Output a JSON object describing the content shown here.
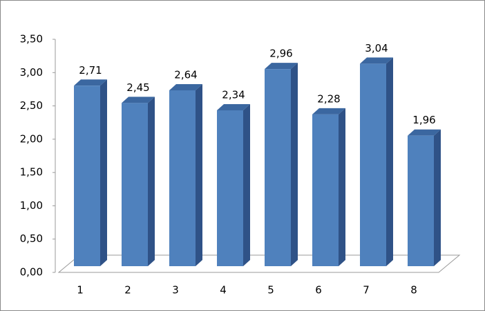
{
  "chart_data": {
    "type": "bar3d",
    "categories": [
      "1",
      "2",
      "3",
      "4",
      "5",
      "6",
      "7",
      "8"
    ],
    "values": [
      2.71,
      2.45,
      2.64,
      2.34,
      2.96,
      2.28,
      3.04,
      1.96
    ],
    "value_labels": [
      "2,71",
      "2,45",
      "2,64",
      "2,34",
      "2,96",
      "2,28",
      "3,04",
      "1,96"
    ],
    "color": "#4f81bd",
    "ylim": [
      0,
      3.5
    ],
    "yticks": [
      {
        "value": 0,
        "label": "0,00"
      },
      {
        "value": 0.5,
        "label": "0,50"
      },
      {
        "value": 1,
        "label": "1,00"
      },
      {
        "value": 1.5,
        "label": "1,50"
      },
      {
        "value": 2,
        "label": "2,00"
      },
      {
        "value": 2.5,
        "label": "2,50"
      },
      {
        "value": 3,
        "label": "3,00"
      },
      {
        "value": 3.5,
        "label": "3,50"
      }
    ]
  }
}
